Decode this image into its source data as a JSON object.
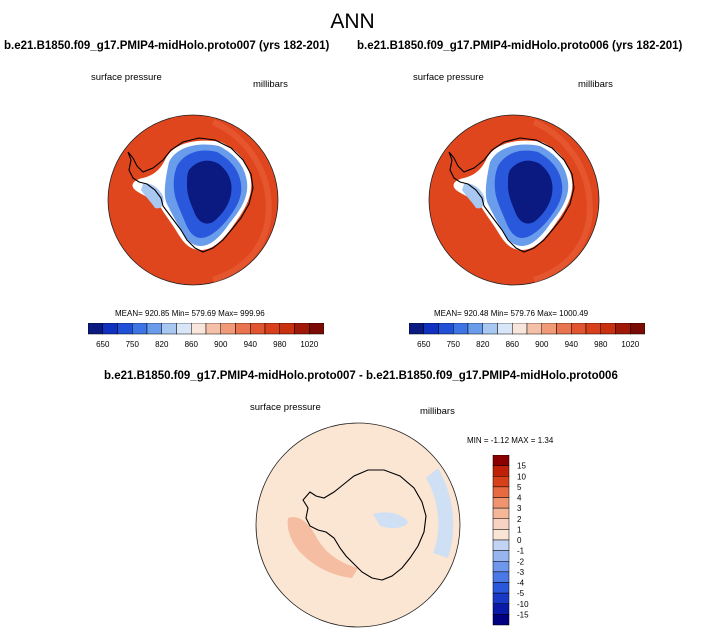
{
  "page": {
    "title": "ANN"
  },
  "colors": {
    "abs_scale": [
      "#0a1a80",
      "#1030c0",
      "#2050d8",
      "#3e75e6",
      "#6a9cec",
      "#a8c8f2",
      "#d8e6f8",
      "#f8e6dc",
      "#f5c0a8",
      "#f09a78",
      "#e87450",
      "#e05530",
      "#d8401c",
      "#c83010",
      "#a01808",
      "#7a0a04"
    ],
    "diff_scale": [
      "#000080",
      "#0a1aa8",
      "#1838c8",
      "#2a58dc",
      "#4a78e6",
      "#6e96ea",
      "#96b4ee",
      "#c2d4f4",
      "#f9e5d6",
      "#f8d2c2",
      "#f4b898",
      "#f09470",
      "#e86a40",
      "#d8401a",
      "#c02008",
      "#8a0000"
    ],
    "ocean_abs": "#e0461e",
    "ocean_diff": "#fbe5d3"
  },
  "panels": {
    "left": {
      "heading": "b.e21.B1850.f09_g17.PMIP4-midHolo.proto007 (yrs 182-201)",
      "variable": "surface pressure",
      "units": "millibars",
      "stats": "MEAN= 920.85  Min= 579.69  Max= 999.96"
    },
    "right": {
      "heading": "b.e21.B1850.f09_g17.PMIP4-midHolo.proto006 (yrs 182-201)",
      "variable": "surface pressure",
      "units": "millibars",
      "stats": "MEAN= 920.48  Min= 579.76  Max= 1000.49"
    },
    "diff": {
      "heading": "b.e21.B1850.f09_g17.PMIP4-midHolo.proto007 - b.e21.B1850.f09_g17.PMIP4-midHolo.proto006",
      "variable": "surface pressure",
      "units": "millibars",
      "stats": "MIN =  -1.12 MAX =   1.34"
    }
  },
  "chart_data": [
    {
      "type": "heatmap",
      "title": "b.e21.B1850.f09_g17.PMIP4-midHolo.proto007 (yrs 182-201)",
      "variable": "surface pressure",
      "units": "millibars",
      "statistics": {
        "mean": 920.85,
        "min": 579.69,
        "max": 999.96
      },
      "colorbar_tick_labels": [
        "650",
        "750",
        "820",
        "860",
        "900",
        "940",
        "980",
        "1020"
      ]
    },
    {
      "type": "heatmap",
      "title": "b.e21.B1850.f09_g17.PMIP4-midHolo.proto006 (yrs 182-201)",
      "variable": "surface pressure",
      "units": "millibars",
      "statistics": {
        "mean": 920.48,
        "min": 579.76,
        "max": 1000.49
      },
      "colorbar_tick_labels": [
        "650",
        "750",
        "820",
        "860",
        "900",
        "940",
        "980",
        "1020"
      ]
    },
    {
      "type": "heatmap",
      "title": "b.e21.B1850.f09_g17.PMIP4-midHolo.proto007 - b.e21.B1850.f09_g17.PMIP4-midHolo.proto006",
      "variable": "surface pressure",
      "units": "millibars",
      "statistics": {
        "min": -1.12,
        "max": 1.34
      },
      "colorbar_tick_labels": [
        "15",
        "10",
        "5",
        "4",
        "3",
        "2",
        "1",
        "0",
        "-1",
        "-2",
        "-3",
        "-4",
        "-5",
        "-10",
        "-15"
      ]
    }
  ]
}
